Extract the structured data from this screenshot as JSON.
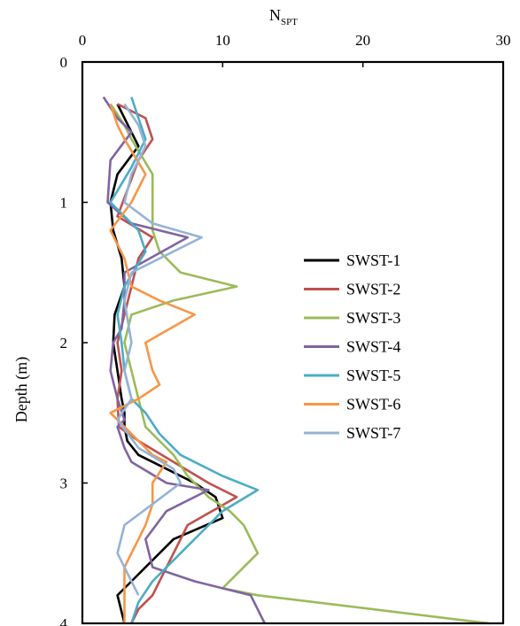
{
  "chart_data": {
    "type": "line",
    "title": "",
    "xlabel_main": "N",
    "xlabel_sub": "SPT",
    "ylabel": "Depth (m)",
    "xlim": [
      0,
      30
    ],
    "ylim": [
      0,
      4
    ],
    "x_ticks": [
      "0",
      "10",
      "20",
      "30"
    ],
    "x_tick_values": [
      0,
      10,
      20,
      30
    ],
    "y_ticks": [
      "0",
      "1",
      "2",
      "3",
      "4"
    ],
    "y_tick_values": [
      0,
      1,
      2,
      3,
      4
    ],
    "x_axis_position": "top",
    "y_axis_inverted": true,
    "grid": false,
    "legend_position": "right",
    "series": [
      {
        "name": "SWST-1",
        "color": "#000000",
        "x": [
          2.5,
          3.5,
          4.0,
          2.5,
          2.0,
          2.2,
          2.8,
          3.0,
          2.3,
          2.2,
          2.5,
          2.8,
          3.0,
          3.0,
          3.2,
          4.0,
          6.0,
          8.0,
          9.5,
          10.0,
          6.5,
          4.5,
          3.5,
          2.5,
          3.0
        ],
        "y": [
          0.3,
          0.5,
          0.6,
          0.8,
          1.0,
          1.2,
          1.4,
          1.6,
          1.8,
          2.0,
          2.2,
          2.4,
          2.5,
          2.6,
          2.7,
          2.8,
          2.9,
          3.0,
          3.1,
          3.25,
          3.4,
          3.6,
          3.7,
          3.8,
          4.0
        ]
      },
      {
        "name": "SWST-2",
        "color": "#c0504d",
        "x": [
          2.5,
          4.5,
          5.0,
          4.0,
          2.5,
          5.0,
          4.0,
          3.5,
          3.0,
          2.5,
          2.8,
          2.5,
          2.6,
          4.0,
          6.5,
          9.0,
          11.0,
          7.5,
          6.0,
          5.0,
          4.0,
          3.5
        ],
        "y": [
          0.3,
          0.4,
          0.55,
          0.7,
          1.1,
          1.25,
          1.4,
          1.6,
          1.8,
          2.0,
          2.2,
          2.4,
          2.6,
          2.7,
          2.85,
          3.0,
          3.1,
          3.3,
          3.6,
          3.8,
          3.9,
          4.0
        ]
      },
      {
        "name": "SWST-3",
        "color": "#9bbb59",
        "x": [
          2.0,
          3.0,
          3.5,
          5.0,
          5.0,
          5.5,
          7.0,
          11.0,
          6.5,
          3.5,
          3.0,
          3.5,
          4.0,
          4.5,
          5.5,
          6.5,
          7.5,
          9.0,
          10.5,
          11.5,
          12.5,
          10.0,
          12.5,
          29.0
        ],
        "y": [
          0.3,
          0.45,
          0.55,
          0.8,
          1.2,
          1.35,
          1.5,
          1.6,
          1.7,
          1.8,
          2.0,
          2.2,
          2.4,
          2.6,
          2.7,
          2.8,
          2.95,
          3.1,
          3.2,
          3.3,
          3.5,
          3.75,
          3.8,
          4.0
        ]
      },
      {
        "name": "SWST-4",
        "color": "#8064a2",
        "x": [
          1.5,
          2.5,
          3.5,
          2.0,
          1.8,
          3.5,
          7.5,
          3.0,
          3.0,
          2.8,
          2.2,
          2.0,
          2.5,
          3.0,
          2.5,
          3.0,
          3.5,
          6.0,
          9.0,
          6.0,
          4.5,
          5.0,
          8.0,
          12.0,
          13.0
        ],
        "y": [
          0.25,
          0.4,
          0.5,
          0.7,
          1.0,
          1.15,
          1.25,
          1.5,
          1.7,
          1.9,
          2.0,
          2.2,
          2.4,
          2.55,
          2.6,
          2.75,
          2.85,
          3.0,
          3.05,
          3.2,
          3.4,
          3.6,
          3.7,
          3.8,
          4.0
        ]
      },
      {
        "name": "SWST-5",
        "color": "#4bacc6",
        "x": [
          3.5,
          4.0,
          4.5,
          3.5,
          2.0,
          4.0,
          4.5,
          3.0,
          2.5,
          2.8,
          3.0,
          3.5,
          4.5,
          5.5,
          7.0,
          10.0,
          12.5,
          10.0,
          8.5,
          7.0,
          5.0,
          4.0,
          3.5
        ],
        "y": [
          0.25,
          0.4,
          0.55,
          0.75,
          1.0,
          1.2,
          1.35,
          1.6,
          1.8,
          2.0,
          2.2,
          2.4,
          2.5,
          2.65,
          2.8,
          2.95,
          3.05,
          3.2,
          3.35,
          3.5,
          3.7,
          3.85,
          4.0
        ]
      },
      {
        "name": "SWST-6",
        "color": "#f79646",
        "x": [
          2.0,
          2.5,
          3.0,
          4.5,
          3.5,
          2.0,
          3.0,
          3.5,
          5.5,
          8.0,
          4.5,
          5.0,
          5.5,
          4.0,
          2.0,
          3.0,
          4.0,
          5.0,
          6.0,
          5.0,
          5.0,
          4.5,
          3.0,
          3.0
        ],
        "y": [
          0.3,
          0.45,
          0.55,
          0.8,
          1.0,
          1.2,
          1.4,
          1.6,
          1.7,
          1.8,
          2.0,
          2.2,
          2.3,
          2.4,
          2.5,
          2.6,
          2.7,
          2.8,
          2.85,
          3.0,
          3.15,
          3.3,
          3.6,
          4.0
        ]
      },
      {
        "name": "SWST-7",
        "color": "#95b3d7",
        "x": [
          3.0,
          4.0,
          4.5,
          3.5,
          3.0,
          5.0,
          8.5,
          3.5,
          3.0,
          3.5,
          3.0,
          3.5,
          2.5,
          4.0,
          6.5,
          7.0,
          5.0,
          3.0,
          2.5,
          3.5,
          4.0
        ],
        "y": [
          0.3,
          0.45,
          0.6,
          0.8,
          1.0,
          1.15,
          1.25,
          1.5,
          1.7,
          2.0,
          2.2,
          2.4,
          2.55,
          2.75,
          2.9,
          3.0,
          3.15,
          3.3,
          3.5,
          3.7,
          3.8
        ]
      }
    ]
  }
}
